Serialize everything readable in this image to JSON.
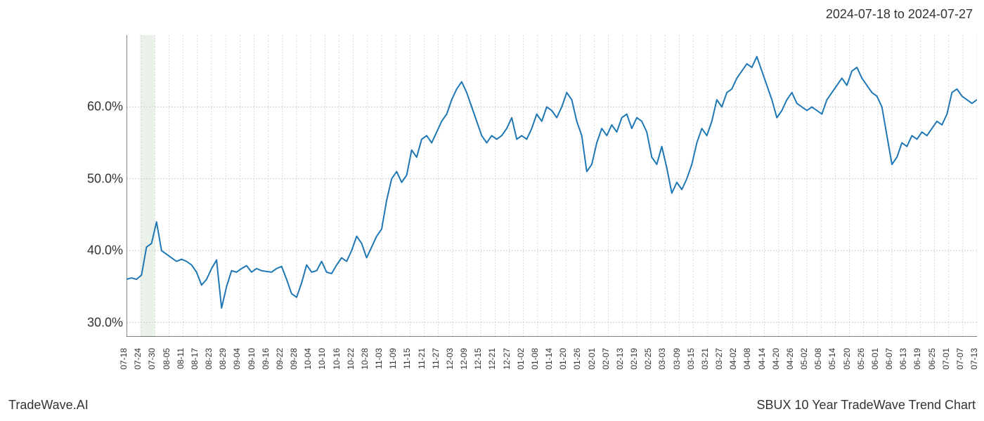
{
  "header": {
    "date_range": "2024-07-18 to 2024-07-27"
  },
  "footer": {
    "left": "TradeWave.AI",
    "right": "SBUX 10 Year TradeWave Trend Chart"
  },
  "chart": {
    "type": "line",
    "background_color": "#ffffff",
    "line_color": "#1f77b4",
    "line_width": 2,
    "grid_color": "#cccccc",
    "grid_dash": "2,2",
    "axis_color": "#333333",
    "highlight_band": {
      "fill": "#dbe8d9",
      "opacity": 0.6,
      "x_start_index": 1,
      "x_end_index": 2
    },
    "ylim": [
      28,
      70
    ],
    "y_ticks": [
      30,
      40,
      50,
      60
    ],
    "y_tick_labels": [
      "30.0%",
      "40.0%",
      "50.0%",
      "60.0%"
    ],
    "y_label_fontsize": 18,
    "x_labels": [
      "07-18",
      "07-24",
      "07-30",
      "08-05",
      "08-11",
      "08-17",
      "08-23",
      "08-29",
      "09-04",
      "09-10",
      "09-16",
      "09-22",
      "09-28",
      "10-04",
      "10-10",
      "10-16",
      "10-22",
      "10-28",
      "11-03",
      "11-09",
      "11-15",
      "11-21",
      "11-27",
      "12-03",
      "12-09",
      "12-15",
      "12-21",
      "12-27",
      "01-02",
      "01-08",
      "01-14",
      "01-20",
      "01-26",
      "02-01",
      "02-07",
      "02-13",
      "02-19",
      "02-25",
      "03-03",
      "03-09",
      "03-15",
      "03-21",
      "03-27",
      "04-02",
      "04-08",
      "04-14",
      "04-20",
      "04-26",
      "05-02",
      "05-08",
      "05-14",
      "05-20",
      "05-26",
      "06-01",
      "06-07",
      "06-13",
      "06-19",
      "06-25",
      "07-01",
      "07-07",
      "07-13"
    ],
    "x_label_fontsize": 12,
    "series": [
      36.0,
      36.2,
      36.0,
      36.6,
      40.5,
      41.0,
      44.0,
      40.0,
      39.5,
      39.0,
      38.5,
      38.8,
      38.5,
      38.0,
      37.0,
      35.2,
      36.0,
      37.5,
      38.7,
      32.0,
      35.0,
      37.2,
      37.0,
      37.5,
      37.9,
      37.0,
      37.5,
      37.2,
      37.1,
      37.0,
      37.5,
      37.8,
      36.0,
      34.0,
      33.5,
      35.5,
      38.0,
      37.0,
      37.2,
      38.5,
      37.0,
      36.8,
      38.0,
      39.0,
      38.5,
      40.0,
      42.0,
      41.0,
      39.0,
      40.5,
      42.0,
      43.0,
      47.0,
      50.0,
      51.0,
      49.5,
      50.5,
      54.0,
      53.0,
      55.5,
      56.0,
      55.0,
      56.5,
      58.0,
      59.0,
      61.0,
      62.5,
      63.5,
      62.0,
      60.0,
      58.0,
      56.0,
      55.0,
      56.0,
      55.5,
      56.0,
      57.0,
      58.5,
      55.5,
      56.0,
      55.5,
      57.0,
      59.0,
      58.0,
      60.0,
      59.5,
      58.5,
      60.0,
      62.0,
      61.0,
      58.0,
      56.0,
      51.0,
      52.0,
      55.0,
      57.0,
      56.0,
      57.5,
      56.5,
      58.5,
      59.0,
      57.0,
      58.5,
      58.0,
      56.5,
      53.0,
      52.0,
      54.5,
      51.5,
      48.0,
      49.5,
      48.5,
      50.0,
      52.0,
      55.0,
      57.0,
      56.0,
      58.0,
      61.0,
      60.0,
      62.0,
      62.5,
      64.0,
      65.0,
      66.0,
      65.5,
      67.0,
      65.0,
      63.0,
      61.0,
      58.5,
      59.5,
      61.0,
      62.0,
      60.5,
      60.0,
      59.5,
      60.0,
      59.5,
      59.0,
      61.0,
      62.0,
      63.0,
      64.0,
      63.0,
      65.0,
      65.5,
      64.0,
      63.0,
      62.0,
      61.5,
      60.0,
      56.0,
      52.0,
      53.0,
      55.0,
      54.5,
      56.0,
      55.5,
      56.5,
      56.0,
      57.0,
      58.0,
      57.5,
      59.0,
      62.0,
      62.5,
      61.5,
      61.0,
      60.5,
      61.0
    ]
  }
}
